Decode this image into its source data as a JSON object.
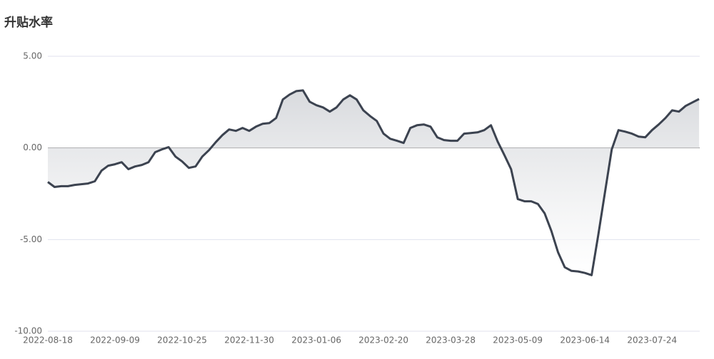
{
  "chart_data": {
    "type": "line",
    "title": "升贴水率",
    "categories": [
      "2022-08-18",
      null,
      null,
      null,
      null,
      null,
      null,
      null,
      null,
      null,
      "2022-09-09",
      null,
      null,
      null,
      null,
      null,
      null,
      null,
      null,
      null,
      "2022-10-25",
      null,
      null,
      null,
      null,
      null,
      null,
      null,
      null,
      null,
      "2022-11-30",
      null,
      null,
      null,
      null,
      null,
      null,
      null,
      null,
      null,
      "2023-01-06",
      null,
      null,
      null,
      null,
      null,
      null,
      null,
      null,
      null,
      "2023-02-20",
      null,
      null,
      null,
      null,
      null,
      null,
      null,
      null,
      null,
      "2023-03-28",
      null,
      null,
      null,
      null,
      null,
      null,
      null,
      null,
      null,
      "2023-05-09",
      null,
      null,
      null,
      null,
      null,
      null,
      null,
      null,
      null,
      "2023-06-14",
      null,
      null,
      null,
      null,
      null,
      null,
      null,
      null,
      null,
      "2023-07-24",
      null,
      null,
      null,
      null,
      null,
      null,
      null
    ],
    "values": [
      -1.86,
      -2.13,
      -2.09,
      -2.09,
      -2.02,
      -1.98,
      -1.94,
      -1.82,
      -1.24,
      -0.97,
      -0.89,
      -0.78,
      -1.16,
      -1.01,
      -0.93,
      -0.78,
      -0.23,
      -0.08,
      0.04,
      -0.47,
      -0.74,
      -1.09,
      -1.01,
      -0.47,
      -0.12,
      0.31,
      0.7,
      1.01,
      0.93,
      1.09,
      0.93,
      1.16,
      1.32,
      1.36,
      1.63,
      2.64,
      2.91,
      3.1,
      3.14,
      2.52,
      2.33,
      2.21,
      1.98,
      2.21,
      2.64,
      2.87,
      2.64,
      2.05,
      1.74,
      1.47,
      0.78,
      0.5,
      0.39,
      0.27,
      1.09,
      1.24,
      1.28,
      1.16,
      0.58,
      0.43,
      0.39,
      0.39,
      0.78,
      0.81,
      0.85,
      0.97,
      1.24,
      0.35,
      -0.39,
      -1.16,
      -2.79,
      -2.91,
      -2.91,
      -3.06,
      -3.57,
      -4.53,
      -5.7,
      -6.51,
      -6.71,
      -6.74,
      -6.82,
      -6.94,
      -4.73,
      -2.4,
      -0.08,
      0.97,
      0.89,
      0.78,
      0.62,
      0.58,
      0.97,
      1.28,
      1.63,
      2.05,
      1.98,
      2.29,
      2.48,
      2.67
    ],
    "color": "#3c4350",
    "area": true,
    "grid": true,
    "ylim": [
      -10,
      5
    ],
    "yticks": [
      {
        "value": -10,
        "label": "-10.00"
      },
      {
        "value": -5,
        "label": "-5.00"
      },
      {
        "value": 0,
        "label": "0.00"
      },
      {
        "value": 5,
        "label": "5.00"
      }
    ]
  }
}
